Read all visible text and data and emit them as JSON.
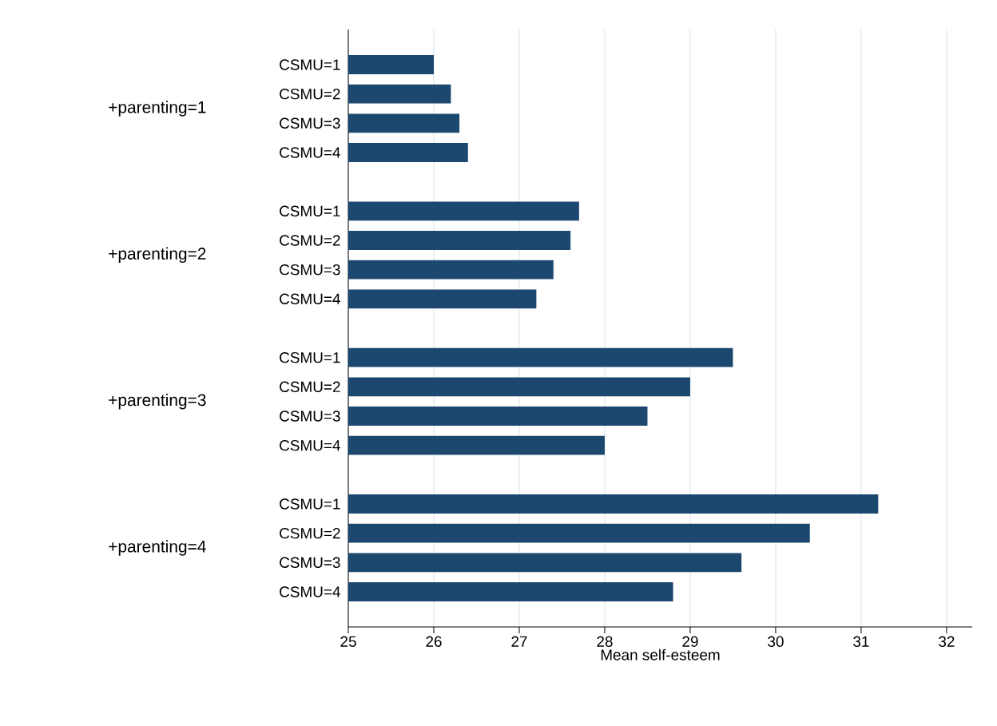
{
  "chart_data": {
    "type": "bar",
    "orientation": "horizontal",
    "xlabel": "Mean self-esteem",
    "categories": [
      "CSMU=1",
      "CSMU=2",
      "CSMU=3",
      "CSMU=4",
      null,
      "CSMU=1",
      "CSMU=2",
      "CSMU=3",
      "CSMU=4",
      null,
      "CSMU=1",
      "CSMU=2",
      "CSMU=3",
      "CSMU=4",
      null,
      "CSMU=1",
      "CSMU=2",
      "CSMU=3",
      "CSMU=4"
    ],
    "values": [
      26.0,
      26.2,
      26.3,
      26.4,
      null,
      27.7,
      27.6,
      27.4,
      27.2,
      null,
      29.5,
      29.0,
      28.5,
      28.0,
      null,
      31.2,
      30.4,
      29.6,
      28.8
    ],
    "color": "#1c4870",
    "annotations": [
      "+parenting=1",
      "+parenting=2",
      "+parenting=3",
      "+parenting=4"
    ],
    "xlim": [
      25,
      32.3
    ],
    "xticks": [
      25,
      26,
      27,
      28,
      29,
      30,
      31,
      32
    ],
    "grid": "x"
  }
}
